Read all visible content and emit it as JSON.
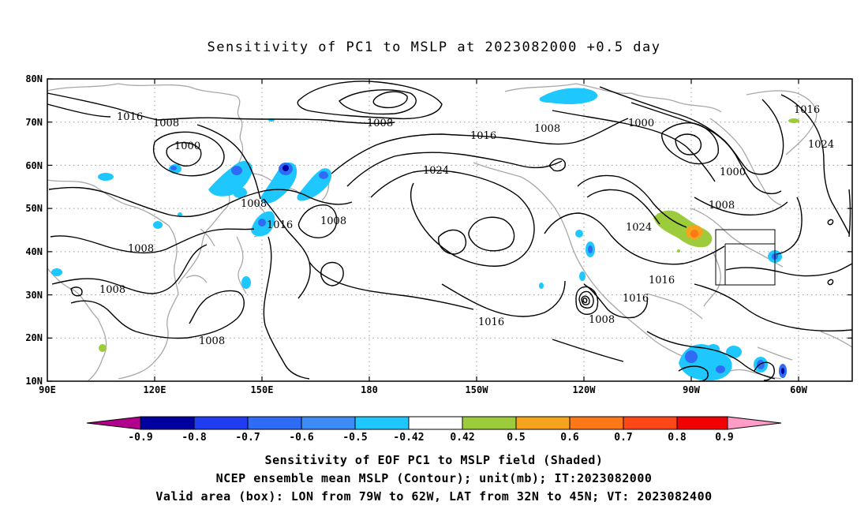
{
  "title": "Sensitivity of PC1 to MSLP at 2023082000 +0.5 day",
  "map": {
    "lat_labels": [
      "80N",
      "70N",
      "60N",
      "50N",
      "40N",
      "30N",
      "20N",
      "10N"
    ],
    "lon_labels": [
      "90E",
      "120E",
      "150E",
      "180",
      "150W",
      "120W",
      "90W",
      "60W"
    ],
    "contour_labels": [
      {
        "text": "1016",
        "name": "contour-label-1016-nw"
      },
      {
        "text": "1008",
        "name": "contour-label-1008-nw"
      },
      {
        "text": "1000",
        "name": "contour-label-1000-siberia"
      },
      {
        "text": "1008",
        "name": "contour-label-1008-arctic"
      },
      {
        "text": "1016",
        "name": "contour-label-1016-arctic"
      },
      {
        "text": "1008",
        "name": "contour-label-1008-alaska"
      },
      {
        "text": "1000",
        "name": "contour-label-1000-canada"
      },
      {
        "text": "1016",
        "name": "contour-label-1016-greenland"
      },
      {
        "text": "1024",
        "name": "contour-label-1024-atlantic"
      },
      {
        "text": "1000",
        "name": "contour-label-1000-labrador"
      },
      {
        "text": "1008",
        "name": "contour-label-1008-quebec"
      },
      {
        "text": "1024",
        "name": "contour-label-1024-pacific"
      },
      {
        "text": "1008",
        "name": "contour-label-1008-kamchatka"
      },
      {
        "text": "1016",
        "name": "contour-label-1016-japan-east"
      },
      {
        "text": "1008",
        "name": "contour-label-1008-npac"
      },
      {
        "text": "1024",
        "name": "contour-label-1024-us"
      },
      {
        "text": "1008",
        "name": "contour-label-1008-china"
      },
      {
        "text": "1008",
        "name": "contour-label-1008-bay-bengal"
      },
      {
        "text": "1008",
        "name": "contour-label-1008-philippines"
      },
      {
        "text": "1016",
        "name": "contour-label-1016-epac"
      },
      {
        "text": "1016",
        "name": "contour-label-1016-mexico"
      },
      {
        "text": "1016",
        "name": "contour-label-1016-gulf"
      },
      {
        "text": "1008",
        "name": "contour-label-1008-hurricane"
      }
    ]
  },
  "colorbar": {
    "labels": [
      "-0.9",
      "-0.8",
      "-0.7",
      "-0.6",
      "-0.5",
      "-0.42",
      "0.42",
      "0.5",
      "0.6",
      "0.7",
      "0.8",
      "0.9"
    ],
    "colors": [
      "#0000a0",
      "#1f3cf0",
      "#2f6cf5",
      "#3d8cf5",
      "#1ec8ff",
      "#ffffff",
      "#9ccc3c",
      "#f6a31e",
      "#ff7818",
      "#ff4718",
      "#f00000"
    ],
    "left_arrow_color": "#b0008c",
    "right_arrow_color": "#ff9cc8"
  },
  "footer": {
    "line1": "Sensitivity of EOF PC1 to MSLP field (Shaded)",
    "line2": "NCEP ensemble mean MSLP (Contour); unit(mb); IT:2023082000",
    "line3": "Valid area (box): LON from 79W to 62W, LAT from 32N to 45N; VT: 2023082400"
  }
}
